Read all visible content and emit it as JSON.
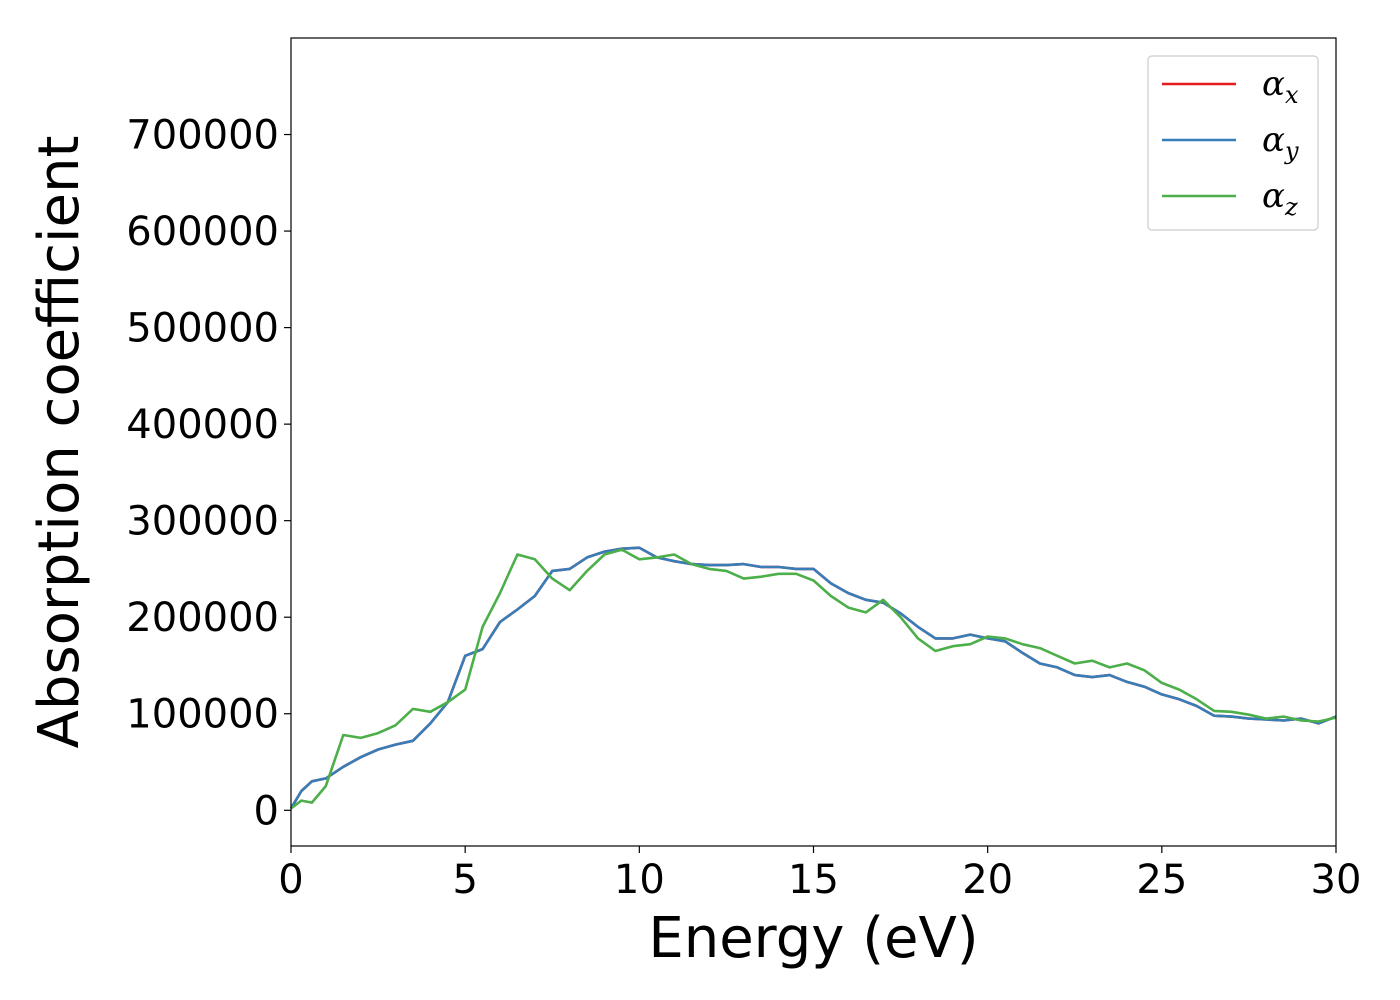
{
  "chart_data": {
    "type": "line",
    "xlabel": "Energy (eV)",
    "ylabel": "Absorption coefficient",
    "xlim": [
      0,
      30
    ],
    "ylim": [
      -37000,
      800000
    ],
    "xticks": [
      0,
      5,
      10,
      15,
      20,
      25,
      30
    ],
    "xtick_labels": [
      "0",
      "5",
      "10",
      "15",
      "20",
      "25",
      "30"
    ],
    "yticks": [
      0,
      100000,
      200000,
      300000,
      400000,
      500000,
      600000,
      700000
    ],
    "ytick_labels": [
      "0",
      "100000",
      "200000",
      "300000",
      "400000",
      "500000",
      "600000",
      "700000"
    ],
    "grid": false,
    "legend_position": "top-right",
    "series": [
      {
        "name": "α",
        "subscript": "x",
        "color": "#e41a1c",
        "x": [
          0,
          0.3,
          0.6,
          1.0,
          1.5,
          2.0,
          2.5,
          3.0,
          3.5,
          4.0,
          4.5,
          5.0,
          5.5,
          6.0,
          6.5,
          7.0,
          7.5,
          8.0,
          8.5,
          9.0,
          9.5,
          10.0,
          10.5,
          11.0,
          11.5,
          12.0,
          12.5,
          13.0,
          13.5,
          14.0,
          14.5,
          15.0,
          15.5,
          16.0,
          16.5,
          17.0,
          17.5,
          18.0,
          18.5,
          19.0,
          19.5,
          20.0,
          20.5,
          21.0,
          21.5,
          22.0,
          22.5,
          23.0,
          23.5,
          24.0,
          24.5,
          25.0,
          25.5,
          26.0,
          26.5,
          27.0,
          27.5,
          28.0,
          28.5,
          29.0,
          29.5,
          30.0
        ],
        "y": [
          2000,
          20000,
          30000,
          33000,
          45000,
          55000,
          63000,
          68000,
          72000,
          90000,
          112000,
          160000,
          167000,
          195000,
          208000,
          222000,
          248000,
          250000,
          262000,
          268000,
          271000,
          272000,
          262000,
          258000,
          255000,
          254000,
          254000,
          255000,
          252000,
          252000,
          250000,
          250000,
          235000,
          225000,
          218000,
          215000,
          204000,
          190000,
          178000,
          178000,
          182000,
          178000,
          175000,
          163000,
          152000,
          148000,
          140000,
          138000,
          140000,
          133000,
          128000,
          120000,
          115000,
          108000,
          98000,
          97000,
          95000,
          94000,
          93000,
          95000,
          90000,
          97000
        ]
      },
      {
        "name": "α",
        "subscript": "y",
        "color": "#377eb8",
        "x": [
          0,
          0.3,
          0.6,
          1.0,
          1.5,
          2.0,
          2.5,
          3.0,
          3.5,
          4.0,
          4.5,
          5.0,
          5.5,
          6.0,
          6.5,
          7.0,
          7.5,
          8.0,
          8.5,
          9.0,
          9.5,
          10.0,
          10.5,
          11.0,
          11.5,
          12.0,
          12.5,
          13.0,
          13.5,
          14.0,
          14.5,
          15.0,
          15.5,
          16.0,
          16.5,
          17.0,
          17.5,
          18.0,
          18.5,
          19.0,
          19.5,
          20.0,
          20.5,
          21.0,
          21.5,
          22.0,
          22.5,
          23.0,
          23.5,
          24.0,
          24.5,
          25.0,
          25.5,
          26.0,
          26.5,
          27.0,
          27.5,
          28.0,
          28.5,
          29.0,
          29.5,
          30.0
        ],
        "y": [
          2000,
          20000,
          30000,
          33000,
          45000,
          55000,
          63000,
          68000,
          72000,
          90000,
          112000,
          160000,
          167000,
          195000,
          208000,
          222000,
          248000,
          250000,
          262000,
          268000,
          271000,
          272000,
          262000,
          258000,
          255000,
          254000,
          254000,
          255000,
          252000,
          252000,
          250000,
          250000,
          235000,
          225000,
          218000,
          215000,
          204000,
          190000,
          178000,
          178000,
          182000,
          178000,
          175000,
          163000,
          152000,
          148000,
          140000,
          138000,
          140000,
          133000,
          128000,
          120000,
          115000,
          108000,
          98000,
          97000,
          95000,
          94000,
          93000,
          95000,
          90000,
          97000
        ]
      },
      {
        "name": "α",
        "subscript": "z",
        "color": "#4daf4a",
        "x": [
          0,
          0.3,
          0.6,
          1.0,
          1.5,
          2.0,
          2.5,
          3.0,
          3.5,
          4.0,
          4.5,
          5.0,
          5.5,
          6.0,
          6.5,
          7.0,
          7.5,
          8.0,
          8.5,
          9.0,
          9.5,
          10.0,
          10.5,
          11.0,
          11.5,
          12.0,
          12.5,
          13.0,
          13.5,
          14.0,
          14.5,
          15.0,
          15.5,
          16.0,
          16.5,
          17.0,
          17.5,
          18.0,
          18.5,
          19.0,
          19.5,
          20.0,
          20.5,
          21.0,
          21.5,
          22.0,
          22.5,
          23.0,
          23.5,
          24.0,
          24.5,
          25.0,
          25.5,
          26.0,
          26.5,
          27.0,
          27.5,
          28.0,
          28.5,
          29.0,
          29.5,
          30.0
        ],
        "y": [
          2000,
          10000,
          8000,
          25000,
          78000,
          75000,
          80000,
          88000,
          105000,
          102000,
          112000,
          125000,
          190000,
          225000,
          265000,
          260000,
          240000,
          228000,
          248000,
          265000,
          270000,
          260000,
          262000,
          265000,
          255000,
          250000,
          248000,
          240000,
          242000,
          245000,
          245000,
          238000,
          222000,
          210000,
          205000,
          218000,
          200000,
          178000,
          165000,
          170000,
          172000,
          180000,
          178000,
          172000,
          168000,
          160000,
          152000,
          155000,
          148000,
          152000,
          145000,
          132000,
          125000,
          115000,
          103000,
          102000,
          99000,
          95000,
          97000,
          93000,
          92000,
          96000
        ]
      }
    ]
  }
}
